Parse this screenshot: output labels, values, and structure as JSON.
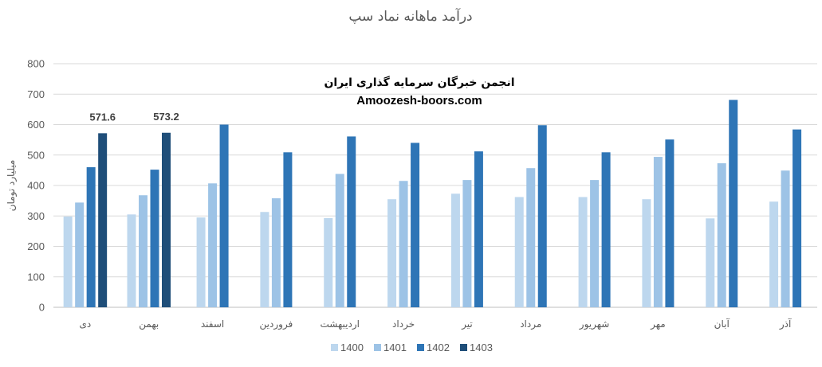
{
  "watermark": {
    "line1": "انجمن خبرگان سرمایه گذاری ایران",
    "line2": "Amoozesh-boors.com"
  },
  "chart_data": {
    "type": "bar",
    "title": "درآمد ماهانه نماد سپ",
    "xlabel": "",
    "ylabel": "میلیارد تومان",
    "ylim": [
      0,
      800
    ],
    "yticks": [
      0,
      100,
      200,
      300,
      400,
      500,
      600,
      700,
      800
    ],
    "grid": true,
    "legend_position": "bottom",
    "categories": [
      "دی",
      "بهمن",
      "اسفند",
      "فروردین",
      "اردیبهشت",
      "خرداد",
      "تیر",
      "مرداد",
      "شهریور",
      "مهر",
      "آبان",
      "آذر"
    ],
    "series": [
      {
        "name": "1400",
        "color": "#bdd7ee",
        "values": [
          298,
          305,
          295,
          313,
          293,
          355,
          373,
          362,
          362,
          355,
          292,
          347
        ]
      },
      {
        "name": "1401",
        "color": "#9dc3e6",
        "values": [
          344,
          368,
          407,
          358,
          438,
          415,
          418,
          457,
          418,
          494,
          473,
          449
        ]
      },
      {
        "name": "1402",
        "color": "#2e75b6",
        "values": [
          460,
          452,
          600,
          509,
          561,
          540,
          512,
          598,
          509,
          551,
          681,
          584
        ]
      },
      {
        "name": "1403",
        "color": "#1f4e79",
        "values": [
          571.6,
          573.2,
          null,
          null,
          null,
          null,
          null,
          null,
          null,
          null,
          null,
          null
        ]
      }
    ],
    "data_labels": [
      "571.6",
      "573.2"
    ]
  }
}
